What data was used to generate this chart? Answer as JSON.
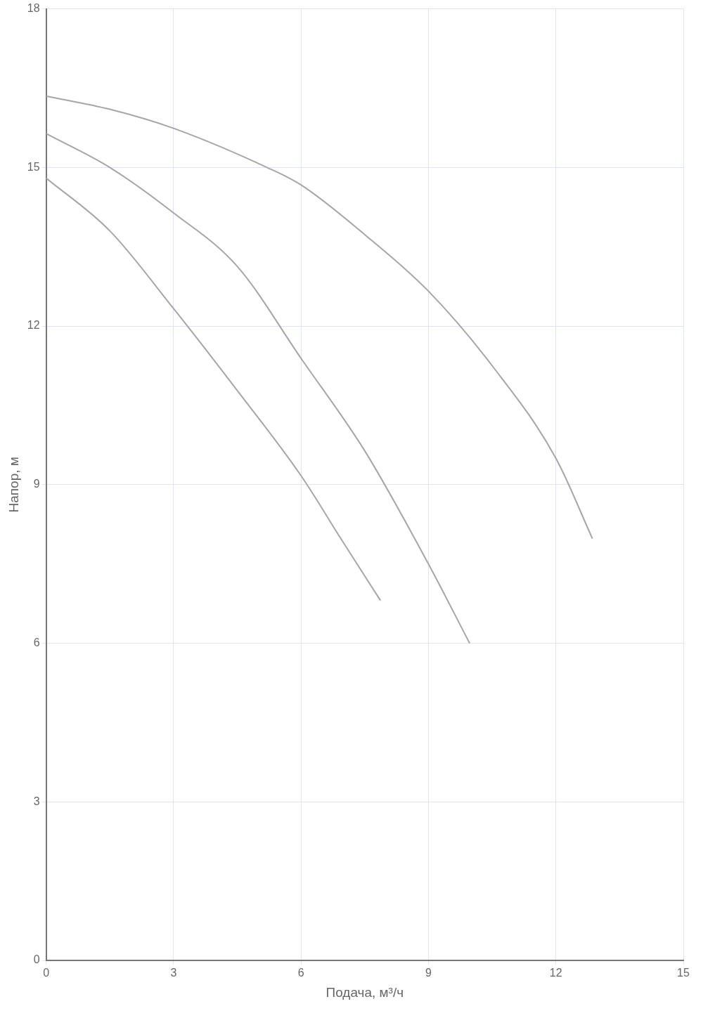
{
  "chart_data": {
    "type": "line",
    "xlabel": "Подача, м³/ч",
    "ylabel": "Напор, м",
    "xlim": [
      0,
      15
    ],
    "ylim": [
      0,
      18
    ],
    "xticks": [
      0,
      3,
      6,
      9,
      12,
      15
    ],
    "yticks": [
      0,
      3,
      6,
      9,
      12,
      15,
      18
    ],
    "grid": true,
    "legend": false,
    "marker": "none",
    "line_style": "solid",
    "series": [
      {
        "color": "#a6a6a6",
        "x": [
          0,
          1.5,
          3,
          5.2,
          6,
          7.5,
          9,
          10.5,
          12,
          12.86
        ],
        "values": [
          16.35,
          16.1,
          15.74,
          15.0,
          14.67,
          13.73,
          12.66,
          11.25,
          9.5,
          7.98
        ]
      },
      {
        "color": "#a6a6a6",
        "x": [
          0,
          1.5,
          3,
          4.5,
          6,
          7.5,
          9,
          9.97
        ],
        "values": [
          15.64,
          15.0,
          14.14,
          13.13,
          11.39,
          9.64,
          7.5,
          6.0
        ]
      },
      {
        "color": "#a6a6a6",
        "x": [
          0,
          1.5,
          3,
          4.5,
          6,
          7,
          7.87
        ],
        "values": [
          14.8,
          13.8,
          12.33,
          10.78,
          9.17,
          7.9,
          6.81
        ]
      }
    ]
  }
}
